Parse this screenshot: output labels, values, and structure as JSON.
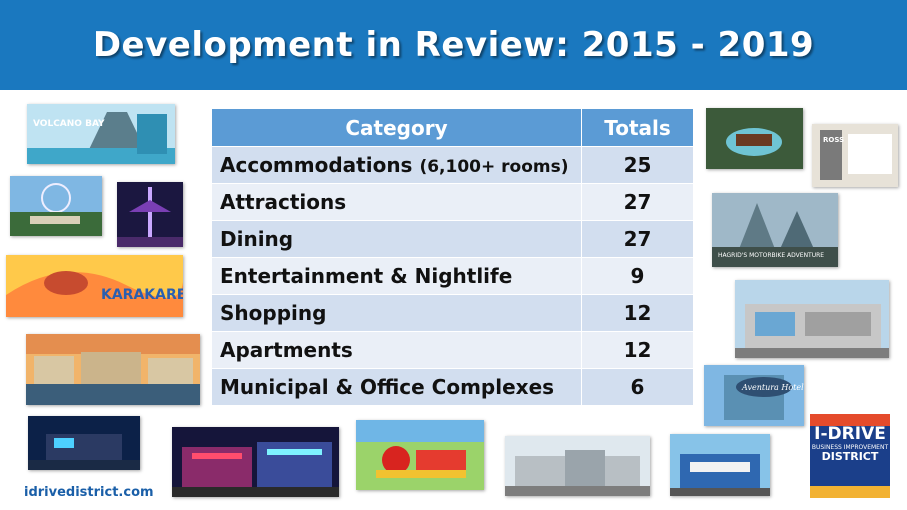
{
  "header": {
    "title": "Development in Review: 2015 - 2019"
  },
  "table": {
    "headers": [
      "Category",
      "Totals"
    ],
    "rows": [
      {
        "category": "Accommodations",
        "note": "(6,100+ rooms)",
        "total": "25"
      },
      {
        "category": "Attractions",
        "note": "",
        "total": "27"
      },
      {
        "category": "Dining",
        "note": "",
        "total": "27"
      },
      {
        "category": "Entertainment & Nightlife",
        "note": "",
        "total": "9"
      },
      {
        "category": "Shopping",
        "note": "",
        "total": "12"
      },
      {
        "category": "Apartments",
        "note": "",
        "total": "12"
      },
      {
        "category": "Municipal & Office Complexes",
        "note": "",
        "total": "6"
      }
    ]
  },
  "photos": {
    "volcano_bay": {
      "sign": "VOLCANO BAY"
    },
    "karkare": {
      "sign": "KARAKARE CURL"
    },
    "hagrid": {
      "sign": "HAGRID'S MOTORBIKE ADVENTURE"
    },
    "ross": {
      "sign": "ROSS"
    },
    "aventura": {
      "sign": "Aventura Hotel"
    }
  },
  "footer": {
    "url": "idrivedistrict.com"
  },
  "logo": {
    "line1": "I-DRIVE",
    "line2": "BUSINESS IMPROVEMENT",
    "line3": "DISTRICT"
  },
  "colors": {
    "header_blue": "#1a78bf",
    "table_header": "#5b9bd5",
    "row_dark": "#d2deef",
    "row_light": "#eaeff7"
  }
}
